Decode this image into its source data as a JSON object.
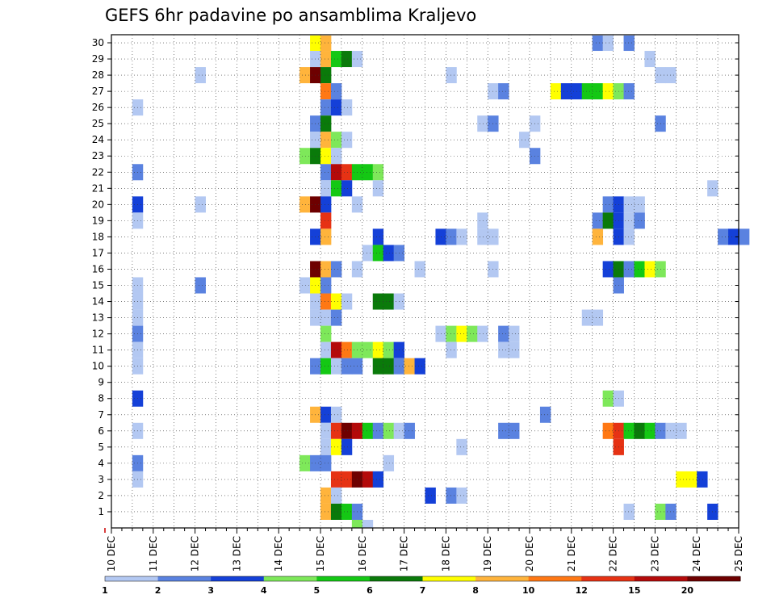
{
  "chart_data": {
    "type": "heatmap",
    "title": "GEFS 6hr padavine po ansamblima Kraljevo",
    "xlabel": "",
    "ylabel": "",
    "x_range": [
      "10 DEC",
      "25 DEC"
    ],
    "x_ticks": [
      "10 DEC",
      "11 DEC",
      "12 DEC",
      "13 DEC",
      "14 DEC",
      "15 DEC",
      "16 DEC",
      "17 DEC",
      "18 DEC",
      "19 DEC",
      "20 DEC",
      "21 DEC",
      "22 DEC",
      "23 DEC",
      "24 DEC",
      "25 DEC"
    ],
    "y_ticks": [
      1,
      2,
      3,
      4,
      5,
      6,
      7,
      8,
      9,
      10,
      11,
      12,
      13,
      14,
      15,
      16,
      17,
      18,
      19,
      20,
      21,
      22,
      23,
      24,
      25,
      26,
      27,
      28,
      29,
      30
    ],
    "y_range": [
      0,
      30
    ],
    "time_step_hours": 6,
    "grid": "dotted",
    "colorbar": {
      "position": "bottom",
      "levels": [
        "1",
        "2",
        "3",
        "4",
        "5",
        "6",
        "7",
        "8",
        "10",
        "12",
        "15",
        "20"
      ],
      "colors": [
        "#b3c8f2",
        "#5a82e0",
        "#1440d8",
        "#7ee85a",
        "#14c814",
        "#0a7a0a",
        "#ffff00",
        "#ffb43c",
        "#ff7814",
        "#e63214",
        "#b40a0a",
        "#6e0000"
      ]
    },
    "cells": [
      {
        "m": 30,
        "t": "14.75",
        "c": 6
      },
      {
        "m": 30,
        "t": "15.0",
        "c": 7
      },
      {
        "m": 30,
        "t": "21.5",
        "c": 1
      },
      {
        "m": 30,
        "t": "21.75",
        "c": 0
      },
      {
        "m": 30,
        "t": "22.25",
        "c": 1
      },
      {
        "m": 29,
        "t": "14.75",
        "c": 0
      },
      {
        "m": 29,
        "t": "15.0",
        "c": 7
      },
      {
        "m": 29,
        "t": "15.25",
        "c": 4
      },
      {
        "m": 29,
        "t": "15.5",
        "c": 5
      },
      {
        "m": 29,
        "t": "15.75",
        "c": 0
      },
      {
        "m": 29,
        "t": "22.75",
        "c": 0
      },
      {
        "m": 28,
        "t": "12.0",
        "c": 0
      },
      {
        "m": 28,
        "t": "14.5",
        "c": 7
      },
      {
        "m": 28,
        "t": "14.75",
        "c": 11
      },
      {
        "m": 28,
        "t": "15.0",
        "c": 5
      },
      {
        "m": 28,
        "t": "18.0",
        "c": 0
      },
      {
        "m": 28,
        "t": "23.0",
        "c": 0
      },
      {
        "m": 28,
        "t": "23.25",
        "c": 0
      },
      {
        "m": 27,
        "t": "15.0",
        "c": 8
      },
      {
        "m": 27,
        "t": "15.25",
        "c": 1
      },
      {
        "m": 27,
        "t": "19.0",
        "c": 0
      },
      {
        "m": 27,
        "t": "19.25",
        "c": 1
      },
      {
        "m": 27,
        "t": "20.5",
        "c": 6
      },
      {
        "m": 27,
        "t": "20.75",
        "c": 2
      },
      {
        "m": 27,
        "t": "21.0",
        "c": 2
      },
      {
        "m": 27,
        "t": "21.25",
        "c": 4
      },
      {
        "m": 27,
        "t": "21.5",
        "c": 4
      },
      {
        "m": 27,
        "t": "21.75",
        "c": 6
      },
      {
        "m": 27,
        "t": "22.0",
        "c": 3
      },
      {
        "m": 27,
        "t": "22.25",
        "c": 1
      },
      {
        "m": 26,
        "t": "10.5",
        "c": 0
      },
      {
        "m": 26,
        "t": "15.0",
        "c": 1
      },
      {
        "m": 26,
        "t": "15.25",
        "c": 2
      },
      {
        "m": 26,
        "t": "15.5",
        "c": 0
      },
      {
        "m": 25,
        "t": "14.75",
        "c": 1
      },
      {
        "m": 25,
        "t": "15.0",
        "c": 5
      },
      {
        "m": 25,
        "t": "18.75",
        "c": 0
      },
      {
        "m": 25,
        "t": "19.0",
        "c": 1
      },
      {
        "m": 25,
        "t": "20.0",
        "c": 0
      },
      {
        "m": 25,
        "t": "23.0",
        "c": 1
      },
      {
        "m": 24,
        "t": "14.75",
        "c": 0
      },
      {
        "m": 24,
        "t": "15.0",
        "c": 7
      },
      {
        "m": 24,
        "t": "15.25",
        "c": 3
      },
      {
        "m": 24,
        "t": "15.5",
        "c": 0
      },
      {
        "m": 24,
        "t": "19.75",
        "c": 0
      },
      {
        "m": 23,
        "t": "14.5",
        "c": 3
      },
      {
        "m": 23,
        "t": "14.75",
        "c": 5
      },
      {
        "m": 23,
        "t": "15.0",
        "c": 6
      },
      {
        "m": 23,
        "t": "15.25",
        "c": 0
      },
      {
        "m": 23,
        "t": "20.0",
        "c": 1
      },
      {
        "m": 22,
        "t": "10.5",
        "c": 1
      },
      {
        "m": 22,
        "t": "15.0",
        "c": 1
      },
      {
        "m": 22,
        "t": "15.25",
        "c": 10
      },
      {
        "m": 22,
        "t": "15.5",
        "c": 9
      },
      {
        "m": 22,
        "t": "15.75",
        "c": 4
      },
      {
        "m": 22,
        "t": "16.0",
        "c": 4
      },
      {
        "m": 22,
        "t": "16.25",
        "c": 3
      },
      {
        "m": 21,
        "t": "15.0",
        "c": 0
      },
      {
        "m": 21,
        "t": "15.25",
        "c": 4
      },
      {
        "m": 21,
        "t": "15.5",
        "c": 2
      },
      {
        "m": 21,
        "t": "16.25",
        "c": 0
      },
      {
        "m": 21,
        "t": "24.25",
        "c": 0
      },
      {
        "m": 20,
        "t": "10.5",
        "c": 2
      },
      {
        "m": 20,
        "t": "12.0",
        "c": 0
      },
      {
        "m": 20,
        "t": "14.5",
        "c": 7
      },
      {
        "m": 20,
        "t": "14.75",
        "c": 11
      },
      {
        "m": 20,
        "t": "15.0",
        "c": 2
      },
      {
        "m": 20,
        "t": "15.75",
        "c": 0
      },
      {
        "m": 20,
        "t": "21.75",
        "c": 1
      },
      {
        "m": 20,
        "t": "22.0",
        "c": 2
      },
      {
        "m": 20,
        "t": "22.25",
        "c": 0
      },
      {
        "m": 20,
        "t": "22.5",
        "c": 0
      },
      {
        "m": 19,
        "t": "10.5",
        "c": 0
      },
      {
        "m": 19,
        "t": "15.0",
        "c": 9
      },
      {
        "m": 19,
        "t": "18.75",
        "c": 0
      },
      {
        "m": 19,
        "t": "21.5",
        "c": 1
      },
      {
        "m": 19,
        "t": "21.75",
        "c": 5
      },
      {
        "m": 19,
        "t": "22.0",
        "c": 2
      },
      {
        "m": 19,
        "t": "22.25",
        "c": 0
      },
      {
        "m": 19,
        "t": "22.5",
        "c": 1
      },
      {
        "m": 18,
        "t": "14.75",
        "c": 2
      },
      {
        "m": 18,
        "t": "15.0",
        "c": 7
      },
      {
        "m": 18,
        "t": "16.25",
        "c": 2
      },
      {
        "m": 18,
        "t": "17.75",
        "c": 2
      },
      {
        "m": 18,
        "t": "18.0",
        "c": 1
      },
      {
        "m": 18,
        "t": "18.25",
        "c": 0
      },
      {
        "m": 18,
        "t": "18.75",
        "c": 0
      },
      {
        "m": 18,
        "t": "19.0",
        "c": 0
      },
      {
        "m": 18,
        "t": "21.5",
        "c": 7
      },
      {
        "m": 18,
        "t": "22.0",
        "c": 2
      },
      {
        "m": 18,
        "t": "22.25",
        "c": 0
      },
      {
        "m": 18,
        "t": "24.5",
        "c": 1
      },
      {
        "m": 18,
        "t": "24.75",
        "c": 2
      },
      {
        "m": 18,
        "t": "25.0",
        "c": 1
      },
      {
        "m": 17,
        "t": "16.0",
        "c": 0
      },
      {
        "m": 17,
        "t": "16.25",
        "c": 4
      },
      {
        "m": 17,
        "t": "16.5",
        "c": 2
      },
      {
        "m": 17,
        "t": "16.75",
        "c": 1
      },
      {
        "m": 16,
        "t": "14.75",
        "c": 11
      },
      {
        "m": 16,
        "t": "15.0",
        "c": 7
      },
      {
        "m": 16,
        "t": "15.25",
        "c": 1
      },
      {
        "m": 16,
        "t": "15.75",
        "c": 0
      },
      {
        "m": 16,
        "t": "17.25",
        "c": 0
      },
      {
        "m": 16,
        "t": "19.0",
        "c": 0
      },
      {
        "m": 16,
        "t": "21.75",
        "c": 2
      },
      {
        "m": 16,
        "t": "22.0",
        "c": 5
      },
      {
        "m": 16,
        "t": "22.25",
        "c": 1
      },
      {
        "m": 16,
        "t": "22.5",
        "c": 4
      },
      {
        "m": 16,
        "t": "22.75",
        "c": 6
      },
      {
        "m": 16,
        "t": "23.0",
        "c": 3
      },
      {
        "m": 15,
        "t": "10.5",
        "c": 0
      },
      {
        "m": 15,
        "t": "12.0",
        "c": 1
      },
      {
        "m": 15,
        "t": "14.5",
        "c": 0
      },
      {
        "m": 15,
        "t": "14.75",
        "c": 6
      },
      {
        "m": 15,
        "t": "15.0",
        "c": 1
      },
      {
        "m": 15,
        "t": "22.0",
        "c": 1
      },
      {
        "m": 14,
        "t": "10.5",
        "c": 0
      },
      {
        "m": 14,
        "t": "14.75",
        "c": 0
      },
      {
        "m": 14,
        "t": "15.0",
        "c": 8
      },
      {
        "m": 14,
        "t": "15.25",
        "c": 6
      },
      {
        "m": 14,
        "t": "15.5",
        "c": 0
      },
      {
        "m": 14,
        "t": "16.25",
        "c": 5
      },
      {
        "m": 14,
        "t": "16.5",
        "c": 5
      },
      {
        "m": 14,
        "t": "16.75",
        "c": 0
      },
      {
        "m": 13,
        "t": "10.5",
        "c": 0
      },
      {
        "m": 13,
        "t": "14.75",
        "c": 0
      },
      {
        "m": 13,
        "t": "15.0",
        "c": 0
      },
      {
        "m": 13,
        "t": "15.25",
        "c": 1
      },
      {
        "m": 13,
        "t": "21.25",
        "c": 0
      },
      {
        "m": 13,
        "t": "21.5",
        "c": 0
      },
      {
        "m": 12,
        "t": "10.5",
        "c": 1
      },
      {
        "m": 12,
        "t": "15.0",
        "c": 3
      },
      {
        "m": 12,
        "t": "17.75",
        "c": 0
      },
      {
        "m": 12,
        "t": "18.0",
        "c": 3
      },
      {
        "m": 12,
        "t": "18.25",
        "c": 6
      },
      {
        "m": 12,
        "t": "18.5",
        "c": 3
      },
      {
        "m": 12,
        "t": "18.75",
        "c": 0
      },
      {
        "m": 12,
        "t": "19.25",
        "c": 1
      },
      {
        "m": 12,
        "t": "19.5",
        "c": 0
      },
      {
        "m": 11,
        "t": "10.5",
        "c": 0
      },
      {
        "m": 11,
        "t": "15.0",
        "c": 0
      },
      {
        "m": 11,
        "t": "15.25",
        "c": 10
      },
      {
        "m": 11,
        "t": "15.5",
        "c": 8
      },
      {
        "m": 11,
        "t": "15.75",
        "c": 3
      },
      {
        "m": 11,
        "t": "16.0",
        "c": 3
      },
      {
        "m": 11,
        "t": "16.25",
        "c": 6
      },
      {
        "m": 11,
        "t": "16.5",
        "c": 3
      },
      {
        "m": 11,
        "t": "16.75",
        "c": 2
      },
      {
        "m": 11,
        "t": "18.0",
        "c": 0
      },
      {
        "m": 11,
        "t": "19.25",
        "c": 0
      },
      {
        "m": 11,
        "t": "19.5",
        "c": 0
      },
      {
        "m": 10,
        "t": "10.5",
        "c": 0
      },
      {
        "m": 10,
        "t": "14.75",
        "c": 1
      },
      {
        "m": 10,
        "t": "15.0",
        "c": 4
      },
      {
        "m": 10,
        "t": "15.25",
        "c": 0
      },
      {
        "m": 10,
        "t": "15.5",
        "c": 1
      },
      {
        "m": 10,
        "t": "15.75",
        "c": 1
      },
      {
        "m": 10,
        "t": "16.25",
        "c": 5
      },
      {
        "m": 10,
        "t": "16.5",
        "c": 5
      },
      {
        "m": 10,
        "t": "16.75",
        "c": 1
      },
      {
        "m": 10,
        "t": "17.0",
        "c": 7
      },
      {
        "m": 10,
        "t": "17.25",
        "c": 2
      },
      {
        "m": 8,
        "t": "10.5",
        "c": 2
      },
      {
        "m": 8,
        "t": "21.75",
        "c": 3
      },
      {
        "m": 8,
        "t": "22.0",
        "c": 0
      },
      {
        "m": 7,
        "t": "14.75",
        "c": 7
      },
      {
        "m": 7,
        "t": "15.0",
        "c": 2
      },
      {
        "m": 7,
        "t": "15.25",
        "c": 0
      },
      {
        "m": 7,
        "t": "20.25",
        "c": 1
      },
      {
        "m": 6,
        "t": "10.5",
        "c": 0
      },
      {
        "m": 6,
        "t": "15.0",
        "c": 0
      },
      {
        "m": 6,
        "t": "15.25",
        "c": 9
      },
      {
        "m": 6,
        "t": "15.5",
        "c": 11
      },
      {
        "m": 6,
        "t": "15.75",
        "c": 10
      },
      {
        "m": 6,
        "t": "16.0",
        "c": 4
      },
      {
        "m": 6,
        "t": "16.25",
        "c": 1
      },
      {
        "m": 6,
        "t": "16.5",
        "c": 3
      },
      {
        "m": 6,
        "t": "16.75",
        "c": 0
      },
      {
        "m": 6,
        "t": "17.0",
        "c": 1
      },
      {
        "m": 6,
        "t": "19.25",
        "c": 1
      },
      {
        "m": 6,
        "t": "19.5",
        "c": 1
      },
      {
        "m": 6,
        "t": "21.75",
        "c": 8
      },
      {
        "m": 6,
        "t": "22.0",
        "c": 9
      },
      {
        "m": 6,
        "t": "22.25",
        "c": 4
      },
      {
        "m": 6,
        "t": "22.5",
        "c": 5
      },
      {
        "m": 6,
        "t": "22.75",
        "c": 4
      },
      {
        "m": 6,
        "t": "23.0",
        "c": 1
      },
      {
        "m": 6,
        "t": "23.25",
        "c": 0
      },
      {
        "m": 6,
        "t": "23.5",
        "c": 0
      },
      {
        "m": 5,
        "t": "15.0",
        "c": 0
      },
      {
        "m": 5,
        "t": "15.25",
        "c": 6
      },
      {
        "m": 5,
        "t": "15.5",
        "c": 2
      },
      {
        "m": 5,
        "t": "18.25",
        "c": 0
      },
      {
        "m": 5,
        "t": "22.0",
        "c": 9
      },
      {
        "m": 4,
        "t": "10.5",
        "c": 1
      },
      {
        "m": 4,
        "t": "14.5",
        "c": 3
      },
      {
        "m": 4,
        "t": "14.75",
        "c": 1
      },
      {
        "m": 4,
        "t": "15.0",
        "c": 1
      },
      {
        "m": 4,
        "t": "16.5",
        "c": 0
      },
      {
        "m": 3,
        "t": "10.5",
        "c": 0
      },
      {
        "m": 3,
        "t": "15.25",
        "c": 9
      },
      {
        "m": 3,
        "t": "15.5",
        "c": 9
      },
      {
        "m": 3,
        "t": "15.75",
        "c": 11
      },
      {
        "m": 3,
        "t": "16.0",
        "c": 10
      },
      {
        "m": 3,
        "t": "16.25",
        "c": 2
      },
      {
        "m": 3,
        "t": "23.5",
        "c": 6
      },
      {
        "m": 3,
        "t": "23.75",
        "c": 6
      },
      {
        "m": 3,
        "t": "24.0",
        "c": 2
      },
      {
        "m": 2,
        "t": "15.0",
        "c": 7
      },
      {
        "m": 2,
        "t": "15.25",
        "c": 0
      },
      {
        "m": 2,
        "t": "17.5",
        "c": 2
      },
      {
        "m": 2,
        "t": "18.0",
        "c": 1
      },
      {
        "m": 2,
        "t": "18.25",
        "c": 0
      },
      {
        "m": 1,
        "t": "15.0",
        "c": 7
      },
      {
        "m": 1,
        "t": "15.25",
        "c": 5
      },
      {
        "m": 1,
        "t": "15.5",
        "c": 4
      },
      {
        "m": 1,
        "t": "15.75",
        "c": 1
      },
      {
        "m": 1,
        "t": "22.25",
        "c": 0
      },
      {
        "m": 1,
        "t": "23.0",
        "c": 3
      },
      {
        "m": 1,
        "t": "23.25",
        "c": 1
      },
      {
        "m": 1,
        "t": "24.25",
        "c": 2
      },
      {
        "m": 0,
        "t": "15.75",
        "c": 3
      },
      {
        "m": 0,
        "t": "16.0",
        "c": 0
      }
    ]
  }
}
